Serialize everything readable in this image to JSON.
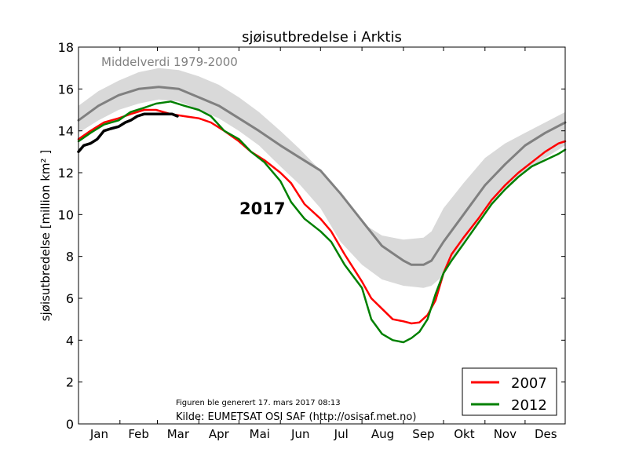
{
  "chart_data": {
    "type": "line",
    "title": "sjøisutbredelse i Arktis",
    "ylabel": "sjøisutbredelse [million km² ]",
    "xlabel": "",
    "ylim": [
      0,
      18
    ],
    "yticks": [
      0,
      2,
      4,
      6,
      8,
      10,
      12,
      14,
      16,
      18
    ],
    "xlim_days": [
      1,
      365
    ],
    "month_labels": [
      "Jan",
      "Feb",
      "Mar",
      "Apr",
      "Mai",
      "Jun",
      "Jul",
      "Aug",
      "Sep",
      "Okt",
      "Nov",
      "Des"
    ],
    "annotations": {
      "mean_label": "Middelverdi 1979-2000",
      "year_label": "2017",
      "generated": "Figuren ble generert 17. mars 2017 08:13",
      "source": "Kilde: EUMETSAT OSI SAF (http://osisaf.met.no)"
    },
    "legend_position": "lower-right",
    "grid": false,
    "colors": {
      "mean": "#808080",
      "band": "#d9d9d9",
      "y2007": "#ff0000",
      "y2012": "#008000",
      "y2017": "#000000"
    },
    "band_1979_2000": {
      "x": [
        1,
        16,
        31,
        46,
        61,
        76,
        91,
        106,
        121,
        136,
        152,
        167,
        182,
        197,
        213,
        228,
        244,
        259,
        265,
        274,
        289,
        305,
        320,
        335,
        350,
        365
      ],
      "upper": [
        15.2,
        15.9,
        16.4,
        16.8,
        17.0,
        16.9,
        16.6,
        16.2,
        15.6,
        14.9,
        14.0,
        13.1,
        12.1,
        10.9,
        9.6,
        9.0,
        8.8,
        8.9,
        9.2,
        10.3,
        11.5,
        12.7,
        13.4,
        13.9,
        14.4,
        14.9
      ],
      "lower": [
        13.9,
        14.5,
        15.0,
        15.3,
        15.5,
        15.4,
        15.0,
        14.6,
        14.0,
        13.3,
        12.3,
        11.4,
        10.3,
        8.7,
        7.6,
        6.9,
        6.6,
        6.5,
        6.6,
        7.1,
        8.7,
        10.2,
        11.3,
        12.0,
        12.7,
        13.3
      ]
    },
    "series": [
      {
        "name": "Middelverdi 1979-2000",
        "x": [
          1,
          16,
          31,
          46,
          61,
          76,
          91,
          106,
          121,
          136,
          152,
          167,
          182,
          197,
          213,
          228,
          244,
          250,
          259,
          265,
          274,
          289,
          305,
          320,
          335,
          350,
          365
        ],
        "values": [
          14.5,
          15.2,
          15.7,
          16.0,
          16.1,
          16.0,
          15.6,
          15.2,
          14.6,
          14.0,
          13.3,
          12.7,
          12.1,
          11.0,
          9.7,
          8.5,
          7.8,
          7.6,
          7.6,
          7.8,
          8.7,
          10.0,
          11.4,
          12.4,
          13.3,
          13.9,
          14.4
        ]
      },
      {
        "name": "2007",
        "x": [
          1,
          10,
          20,
          31,
          40,
          50,
          59,
          70,
          80,
          91,
          100,
          110,
          121,
          130,
          140,
          152,
          160,
          170,
          182,
          190,
          200,
          213,
          220,
          228,
          236,
          244,
          250,
          256,
          262,
          268,
          274,
          280,
          289,
          300,
          310,
          320,
          330,
          340,
          350,
          360,
          365
        ],
        "values": [
          13.6,
          14.0,
          14.4,
          14.6,
          14.8,
          15.0,
          15.0,
          14.8,
          14.7,
          14.6,
          14.4,
          14.0,
          13.5,
          13.0,
          12.6,
          12.0,
          11.5,
          10.5,
          9.8,
          9.2,
          8.1,
          6.8,
          6.0,
          5.5,
          5.0,
          4.9,
          4.8,
          4.85,
          5.2,
          5.9,
          7.2,
          8.1,
          8.9,
          9.8,
          10.7,
          11.4,
          12.0,
          12.5,
          13.0,
          13.4,
          13.5
        ]
      },
      {
        "name": "2012",
        "x": [
          1,
          10,
          20,
          31,
          40,
          50,
          59,
          70,
          80,
          91,
          100,
          110,
          121,
          130,
          140,
          152,
          160,
          170,
          182,
          190,
          200,
          213,
          220,
          228,
          236,
          244,
          250,
          256,
          262,
          268,
          274,
          280,
          289,
          300,
          310,
          320,
          330,
          340,
          350,
          360,
          365
        ],
        "values": [
          13.5,
          13.9,
          14.3,
          14.5,
          14.9,
          15.1,
          15.3,
          15.4,
          15.2,
          15.0,
          14.7,
          14.0,
          13.6,
          13.0,
          12.5,
          11.6,
          10.6,
          9.8,
          9.2,
          8.7,
          7.6,
          6.5,
          5.0,
          4.3,
          4.0,
          3.9,
          4.1,
          4.4,
          5.0,
          6.2,
          7.2,
          7.8,
          8.6,
          9.6,
          10.5,
          11.2,
          11.8,
          12.3,
          12.6,
          12.9,
          13.1
        ]
      },
      {
        "name": "2017",
        "x": [
          1,
          5,
          10,
          15,
          20,
          25,
          31,
          36,
          40,
          45,
          50,
          55,
          59,
          63,
          67,
          71,
          75
        ],
        "values": [
          13.0,
          13.3,
          13.4,
          13.6,
          14.0,
          14.1,
          14.2,
          14.4,
          14.5,
          14.7,
          14.8,
          14.8,
          14.8,
          14.8,
          14.8,
          14.8,
          14.7
        ]
      }
    ],
    "legend_entries": [
      "2007",
      "2012"
    ]
  }
}
